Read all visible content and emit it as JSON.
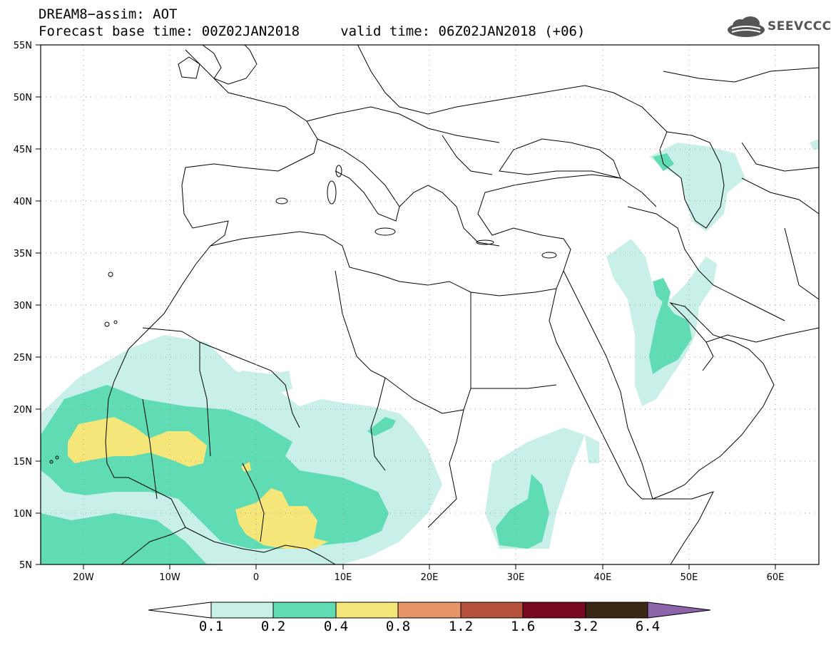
{
  "header": {
    "title_line1": "DREAM8−assim: AOT",
    "title_line2": "Forecast base time: 00Z02JAN2018     valid time: 06Z02JAN2018 (+06)"
  },
  "logo": {
    "text": "SEEVCCC",
    "icon": "cloud-logo-icon"
  },
  "map": {
    "lon_range": [
      -25,
      65
    ],
    "lat_range": [
      5,
      55
    ],
    "lat_labels": [
      "55N",
      "50N",
      "45N",
      "40N",
      "35N",
      "30N",
      "25N",
      "20N",
      "15N",
      "10N",
      "5N"
    ],
    "lon_labels": [
      "20W",
      "10W",
      "0",
      "10E",
      "20E",
      "30E",
      "40E",
      "50E",
      "60E"
    ]
  },
  "colorbar": {
    "colors": [
      "#ffffff",
      "#c8f0e8",
      "#5fdcb4",
      "#f5e67a",
      "#e8946a",
      "#b4503c",
      "#7a0a23",
      "#3c2814",
      "#8c64aa"
    ],
    "labels": [
      "0.1",
      "0.2",
      "0.4",
      "0.8",
      "1.2",
      "1.6",
      "3.2",
      "6.4"
    ]
  }
}
